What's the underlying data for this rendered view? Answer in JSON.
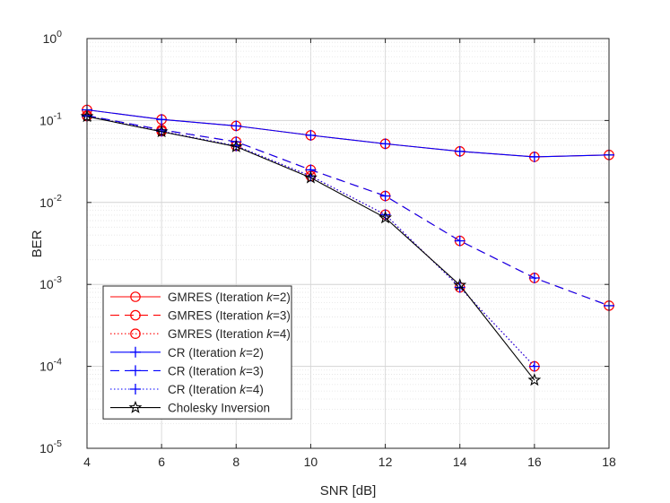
{
  "chart_data": {
    "type": "line",
    "title": "",
    "xlabel": "SNR [dB]",
    "ylabel": "BER",
    "xscale": "linear",
    "yscale": "log",
    "xlim": [
      4,
      18
    ],
    "ylim": [
      1e-05,
      1
    ],
    "xticks": [
      4,
      6,
      8,
      10,
      12,
      14,
      16,
      18
    ],
    "yticks": [
      {
        "value": 1,
        "base": "10",
        "exp": "0"
      },
      {
        "value": 0.1,
        "base": "10",
        "exp": "-1"
      },
      {
        "value": 0.01,
        "base": "10",
        "exp": "-2"
      },
      {
        "value": 0.001,
        "base": "10",
        "exp": "-3"
      },
      {
        "value": 0.0001,
        "base": "10",
        "exp": "-4"
      },
      {
        "value": 1e-05,
        "base": "10",
        "exp": "-5"
      }
    ],
    "grid": true,
    "minor_grid": true,
    "legend_location": "bottom-left",
    "series": [
      {
        "name": "GMRES (Iteration k=2)",
        "prefix": "GMRES (Iteration ",
        "suffix": "=2)",
        "color": "#ff0000",
        "dash": "solid",
        "marker": "circle",
        "x": [
          4,
          6,
          8,
          10,
          12,
          14,
          16,
          18
        ],
        "y": [
          0.135,
          0.103,
          0.086,
          0.066,
          0.052,
          0.042,
          0.036,
          0.038
        ]
      },
      {
        "name": "GMRES (Iteration k=3)",
        "prefix": "GMRES (Iteration ",
        "suffix": "=3)",
        "color": "#ff0000",
        "dash": "dashed",
        "marker": "circle",
        "x": [
          4,
          6,
          8,
          10,
          12,
          14,
          16,
          18
        ],
        "y": [
          0.115,
          0.077,
          0.055,
          0.025,
          0.012,
          0.0034,
          0.0012,
          0.00055
        ]
      },
      {
        "name": "GMRES (Iteration k=4)",
        "prefix": "GMRES (Iteration ",
        "suffix": "=4)",
        "color": "#ff0000",
        "dash": "dotted",
        "marker": "circle",
        "x": [
          4,
          6,
          8,
          10,
          12,
          14,
          16
        ],
        "y": [
          0.113,
          0.074,
          0.049,
          0.021,
          0.0071,
          0.00092,
          0.0001
        ]
      },
      {
        "name": "CR (Iteration k=2)",
        "prefix": "CR (Iteration ",
        "suffix": "=2)",
        "color": "#0000ff",
        "dash": "solid",
        "marker": "plus",
        "x": [
          4,
          6,
          8,
          10,
          12,
          14,
          16,
          18
        ],
        "y": [
          0.135,
          0.103,
          0.086,
          0.066,
          0.052,
          0.042,
          0.036,
          0.038
        ]
      },
      {
        "name": "CR (Iteration k=3)",
        "prefix": "CR (Iteration ",
        "suffix": "=3)",
        "color": "#0000ff",
        "dash": "dashed",
        "marker": "plus",
        "x": [
          4,
          6,
          8,
          10,
          12,
          14,
          16,
          18
        ],
        "y": [
          0.115,
          0.077,
          0.055,
          0.025,
          0.012,
          0.0034,
          0.0012,
          0.00055
        ]
      },
      {
        "name": "CR (Iteration k=4)",
        "prefix": "CR (Iteration ",
        "suffix": "=4)",
        "color": "#0000ff",
        "dash": "dotted",
        "marker": "plus",
        "x": [
          4,
          6,
          8,
          10,
          12,
          14,
          16
        ],
        "y": [
          0.113,
          0.074,
          0.049,
          0.021,
          0.0071,
          0.00092,
          0.0001
        ]
      },
      {
        "name": "Cholesky Inversion",
        "prefix": "Cholesky Inversion",
        "suffix": "",
        "color": "#000000",
        "dash": "solid",
        "marker": "star",
        "x": [
          4,
          6,
          8,
          10,
          12,
          14,
          16
        ],
        "y": [
          0.112,
          0.073,
          0.048,
          0.02,
          0.0065,
          0.00098,
          6.8e-05
        ]
      }
    ]
  }
}
